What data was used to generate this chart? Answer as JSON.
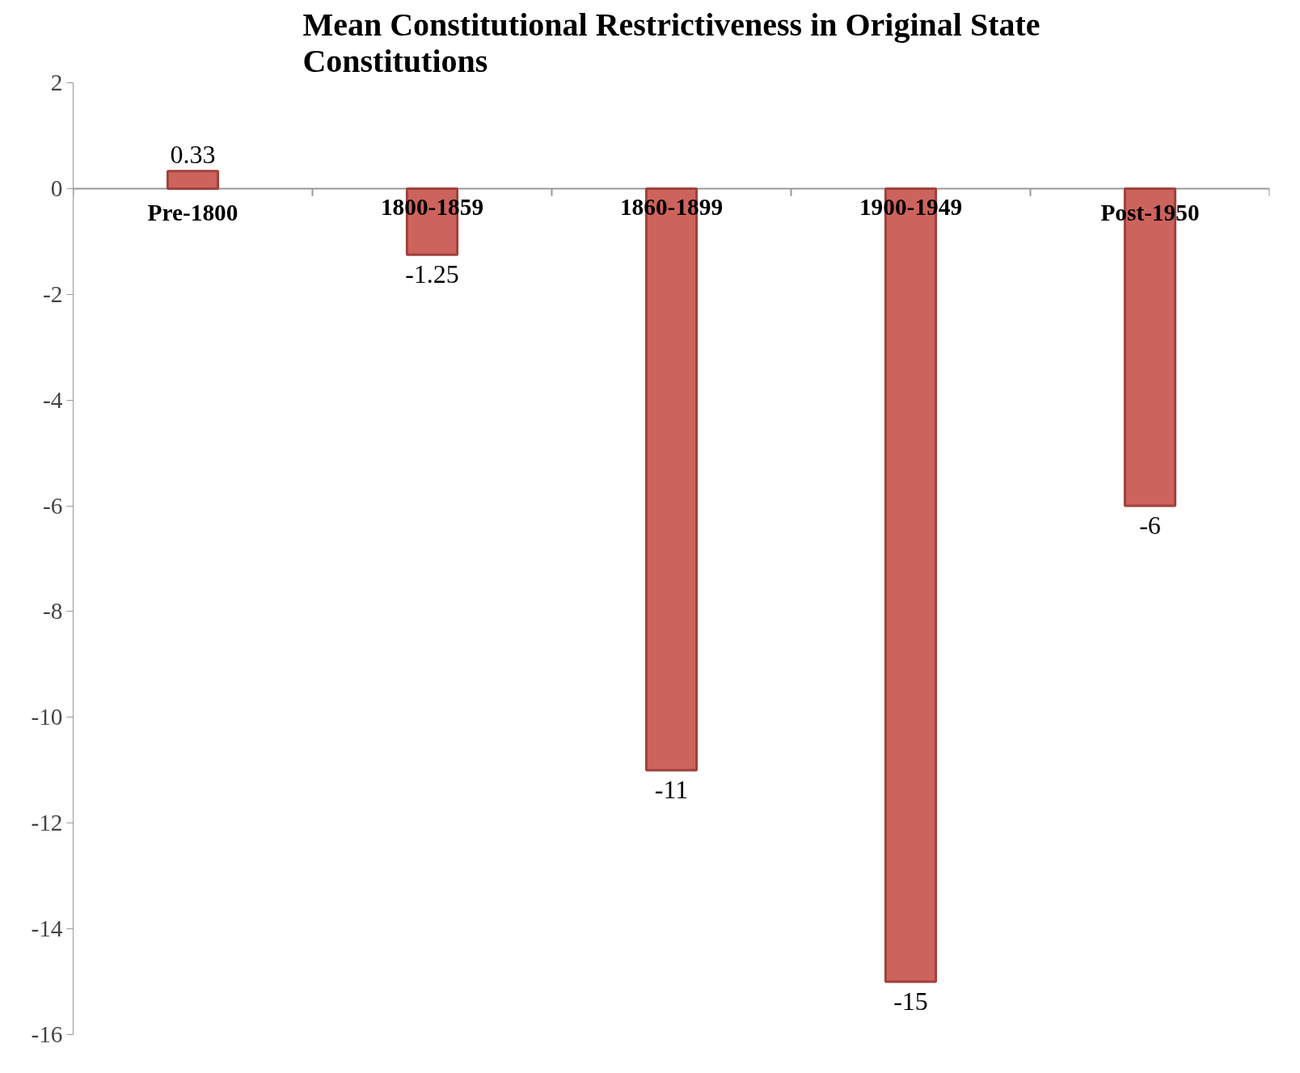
{
  "chart_data": {
    "type": "bar",
    "title": "Mean Constitutional Restrictiveness in Original State\nConstitutions",
    "categories": [
      "Pre-1800",
      "1800-1859",
      "1860-1899",
      "1900-1949",
      "Post-1950"
    ],
    "values": [
      0.33,
      -1.25,
      -11,
      -15,
      -6
    ],
    "color": "#cd635d",
    "ylim": [
      -16,
      2
    ],
    "yticks": [
      -16,
      -14,
      -12,
      -10,
      -8,
      -6,
      -4,
      -2,
      0,
      2
    ],
    "data_labels": true,
    "grid": false
  }
}
